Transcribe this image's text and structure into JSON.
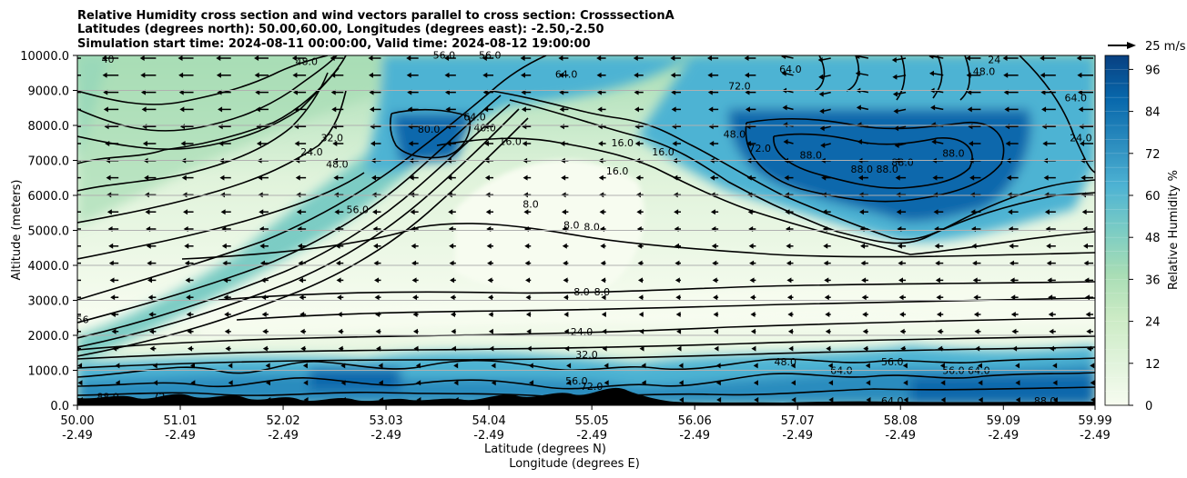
{
  "chart_data": {
    "type": "heatmap",
    "title_lines": [
      "Relative Humidity cross section and wind vectors parallel to cross section: CrosssectionA",
      "Latitudes (degrees north): 50.00,60.00, Longitudes (degrees east): -2.50,-2.50",
      "Simulation start time: 2024-08-11 00:00:00, Valid time: 2024-08-12 19:00:00"
    ],
    "xlabel_lines": [
      "Latitude (degrees N)",
      "Longitude (degrees E)"
    ],
    "ylabel": "Altitude (meters)",
    "xlim": [
      50.0,
      59.99
    ],
    "ylim": [
      0,
      10000
    ],
    "x_ticks": [
      {
        "lat": "50.00",
        "lon": "-2.49"
      },
      {
        "lat": "51.01",
        "lon": "-2.49"
      },
      {
        "lat": "52.02",
        "lon": "-2.49"
      },
      {
        "lat": "53.03",
        "lon": "-2.49"
      },
      {
        "lat": "54.04",
        "lon": "-2.49"
      },
      {
        "lat": "55.05",
        "lon": "-2.49"
      },
      {
        "lat": "56.06",
        "lon": "-2.49"
      },
      {
        "lat": "57.07",
        "lon": "-2.49"
      },
      {
        "lat": "58.08",
        "lon": "-2.49"
      },
      {
        "lat": "59.09",
        "lon": "-2.49"
      },
      {
        "lat": "59.99",
        "lon": "-2.49"
      }
    ],
    "y_ticks": [
      "0.0",
      "1000.0",
      "2000.0",
      "3000.0",
      "4000.0",
      "5000.0",
      "6000.0",
      "7000.0",
      "8000.0",
      "9000.0",
      "10000.0"
    ],
    "grid": "horizontal",
    "colorbar": {
      "label": "Relative Humidity %",
      "ticks": [
        "0",
        "12",
        "24",
        "36",
        "48",
        "60",
        "72",
        "84",
        "96"
      ],
      "range": [
        0,
        100
      ],
      "colormap": "GnBu",
      "stops": [
        "#f7fcf0",
        "#e0f3db",
        "#ccebc5",
        "#a8ddb5",
        "#7bccc4",
        "#4eb3d3",
        "#2b8cbe",
        "#0868ac",
        "#084081"
      ]
    },
    "quiver_key": "25 m/s",
    "contour_labels": [
      {
        "text": "40",
        "lat": 50.3,
        "alt": 9850
      },
      {
        "text": "48.0",
        "lat": 52.25,
        "alt": 9780
      },
      {
        "text": "56.0",
        "lat": 53.6,
        "alt": 9960
      },
      {
        "text": "56.0",
        "lat": 54.05,
        "alt": 9960
      },
      {
        "text": "64.0",
        "lat": 54.8,
        "alt": 9420
      },
      {
        "text": "72.0",
        "lat": 56.5,
        "alt": 9080
      },
      {
        "text": "64.0",
        "lat": 57.0,
        "alt": 9560
      },
      {
        "text": "48.0",
        "lat": 58.9,
        "alt": 9500
      },
      {
        "text": "24",
        "lat": 59.0,
        "alt": 9830
      },
      {
        "text": "64.0",
        "lat": 59.8,
        "alt": 8740
      },
      {
        "text": "64.0",
        "lat": 53.9,
        "alt": 8200
      },
      {
        "text": "40.0",
        "lat": 54.0,
        "alt": 7880
      },
      {
        "text": "80.0",
        "lat": 53.45,
        "alt": 7850
      },
      {
        "text": "32.0",
        "lat": 52.5,
        "alt": 7600
      },
      {
        "text": "24.0",
        "lat": 52.3,
        "alt": 7200
      },
      {
        "text": "48.0",
        "lat": 52.55,
        "alt": 6850
      },
      {
        "text": "56.0",
        "lat": 52.75,
        "alt": 5550
      },
      {
        "text": "16.0",
        "lat": 54.25,
        "alt": 7500
      },
      {
        "text": "16.0",
        "lat": 55.35,
        "alt": 7450
      },
      {
        "text": "16.0",
        "lat": 55.75,
        "alt": 7200
      },
      {
        "text": "16.0",
        "lat": 55.3,
        "alt": 6650
      },
      {
        "text": "48.0",
        "lat": 56.45,
        "alt": 7700
      },
      {
        "text": "72.0",
        "lat": 56.7,
        "alt": 7300
      },
      {
        "text": "88.0",
        "lat": 57.2,
        "alt": 7100
      },
      {
        "text": "88.0",
        "lat": 57.7,
        "alt": 6700
      },
      {
        "text": "88.0",
        "lat": 57.95,
        "alt": 6700
      },
      {
        "text": "88.0",
        "lat": 58.1,
        "alt": 6900
      },
      {
        "text": "88.0",
        "lat": 58.6,
        "alt": 7150
      },
      {
        "text": "24.0",
        "lat": 59.85,
        "alt": 7600
      },
      {
        "text": "8.0",
        "lat": 54.45,
        "alt": 5700
      },
      {
        "text": "8.0",
        "lat": 54.85,
        "alt": 5100
      },
      {
        "text": "8.0",
        "lat": 55.05,
        "alt": 5050
      },
      {
        "text": "8.0",
        "lat": 54.95,
        "alt": 3200
      },
      {
        "text": "8.0",
        "lat": 55.15,
        "alt": 3200
      },
      {
        "text": "24.0",
        "lat": 54.95,
        "alt": 2050
      },
      {
        "text": "32.0",
        "lat": 55.0,
        "alt": 1400
      },
      {
        "text": "56",
        "lat": 50.05,
        "alt": 2400
      },
      {
        "text": "56.0",
        "lat": 58.0,
        "alt": 1200
      },
      {
        "text": "64.0",
        "lat": 57.5,
        "alt": 950
      },
      {
        "text": "48.0",
        "lat": 56.95,
        "alt": 1200
      },
      {
        "text": "56.0",
        "lat": 58.6,
        "alt": 950
      },
      {
        "text": "64.0",
        "lat": 58.85,
        "alt": 950
      },
      {
        "text": "64.0",
        "lat": 58.0,
        "alt": 80
      },
      {
        "text": "88.0",
        "lat": 59.5,
        "alt": 80
      },
      {
        "text": "56.0",
        "lat": 54.9,
        "alt": 650
      },
      {
        "text": "72.0",
        "lat": 55.05,
        "alt": 500
      },
      {
        "text": "88.0",
        "lat": 50.3,
        "alt": 200
      },
      {
        "text": "72",
        "lat": 50.8,
        "alt": 200
      }
    ]
  }
}
